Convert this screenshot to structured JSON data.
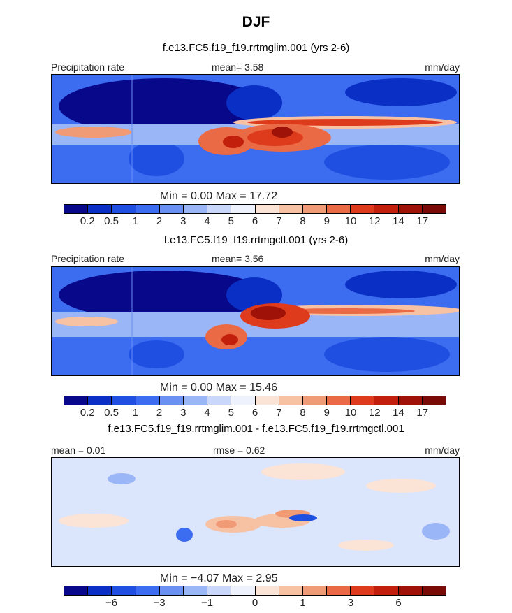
{
  "figure": {
    "title": "DJF",
    "colors": [
      "#08088a",
      "#0a2fc4",
      "#1e4fe0",
      "#3c6cf0",
      "#6a90f4",
      "#9bb6f7",
      "#c9d8fa",
      "#eef2fd",
      "#fbe3d6",
      "#f7c1a4",
      "#f19a76",
      "#ea6a45",
      "#de3b1c",
      "#c21f0c",
      "#9e1208",
      "#7a0a05"
    ],
    "panels": [
      {
        "subtitle": "f.e13.FC5.f19_f19.rrtmglim.001 (yrs 2-6)",
        "left_label": "Precipitation rate",
        "stat": "mean=   3.58",
        "units": "mm/day",
        "minmax": "Min =    0.00  Max =   17.72",
        "ticks": [
          "0.2",
          "0.5",
          "1",
          "2",
          "3",
          "4",
          "5",
          "6",
          "7",
          "8",
          "9",
          "10",
          "12",
          "14",
          "17"
        ]
      },
      {
        "subtitle": "f.e13.FC5.f19_f19.rrtmgctl.001 (yrs 2-6)",
        "left_label": "Precipitation rate",
        "stat": "mean=   3.56",
        "units": "mm/day",
        "minmax": "Min =    0.00  Max =   15.46",
        "ticks": [
          "0.2",
          "0.5",
          "1",
          "2",
          "3",
          "4",
          "5",
          "6",
          "7",
          "8",
          "9",
          "10",
          "12",
          "14",
          "17"
        ]
      },
      {
        "subtitle": "f.e13.FC5.f19_f19.rrtmglim.001 - f.e13.FC5.f19_f19.rrtmgctl.001",
        "left_label": "mean =   0.01",
        "stat": "rmse =   0.62",
        "units": "mm/day",
        "minmax": "Min =  −4.07  Max =    2.95",
        "ticks": [
          "−6",
          "−3",
          "−1",
          "0",
          "1",
          "3",
          "6"
        ]
      }
    ]
  },
  "chart_data": [
    {
      "type": "heatmap",
      "title": "f.e13.FC5.f19_f19.rrtmglim.001 (yrs 2-6)",
      "label": "Precipitation rate",
      "units": "mm/day",
      "mean": 3.58,
      "min": 0.0,
      "max": 17.72,
      "levels": [
        0.2,
        0.5,
        1,
        2,
        3,
        4,
        5,
        6,
        7,
        8,
        9,
        10,
        12,
        14,
        17
      ]
    },
    {
      "type": "heatmap",
      "title": "f.e13.FC5.f19_f19.rrtmgctl.001 (yrs 2-6)",
      "label": "Precipitation rate",
      "units": "mm/day",
      "mean": 3.56,
      "min": 0.0,
      "max": 15.46,
      "levels": [
        0.2,
        0.5,
        1,
        2,
        3,
        4,
        5,
        6,
        7,
        8,
        9,
        10,
        12,
        14,
        17
      ]
    },
    {
      "type": "heatmap",
      "title": "f.e13.FC5.f19_f19.rrtmglim.001 - f.e13.FC5.f19_f19.rrtmgctl.001",
      "units": "mm/day",
      "mean": 0.01,
      "rmse": 0.62,
      "min": -4.07,
      "max": 2.95,
      "levels": [
        -6,
        -3,
        -1,
        0,
        1,
        3,
        6
      ]
    }
  ]
}
